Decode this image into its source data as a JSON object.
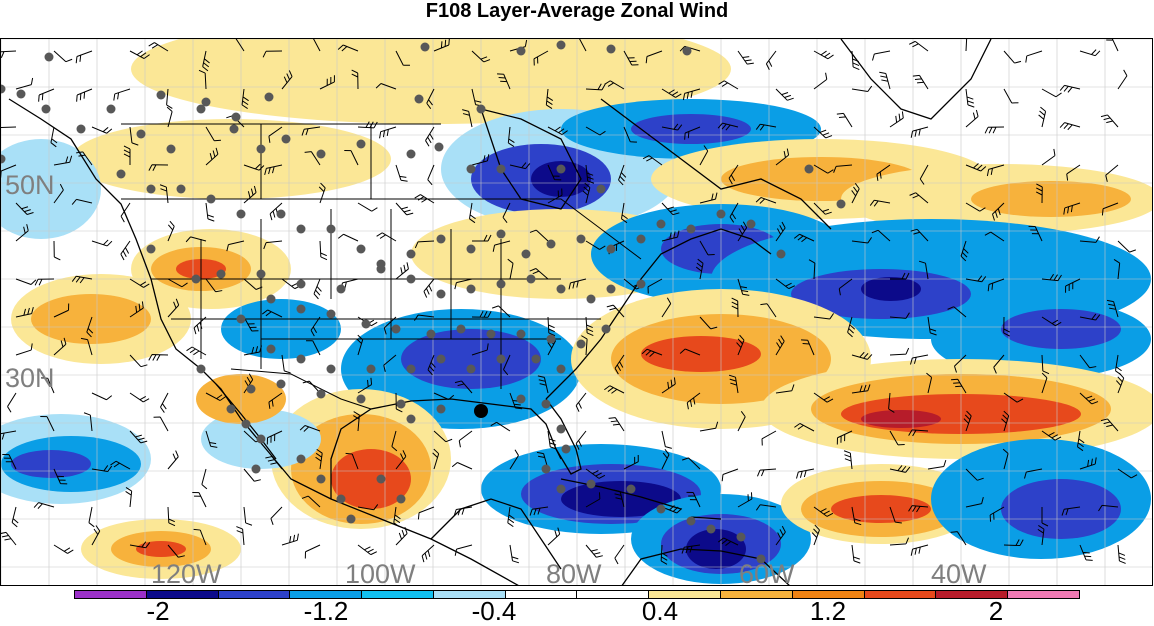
{
  "title": "F108 Layer-Average Zonal Wind",
  "map": {
    "lat_labels": [
      "50N",
      "30N"
    ],
    "lon_labels": [
      "120W",
      "100W",
      "80W",
      "60W",
      "40W"
    ]
  },
  "colorbar": {
    "colors": [
      "#9b30c8",
      "#0c0a8a",
      "#2d41c9",
      "#0a9ee6",
      "#12c0f0",
      "#a9e0f7",
      "#ffffff",
      "#ffffff",
      "#fbe796",
      "#f7b23c",
      "#f08313",
      "#e7491c",
      "#b71c2a",
      "#f07ab4"
    ],
    "tick_labels": [
      "-2",
      "-1.2",
      "-0.4",
      "0.4",
      "1.2",
      "2"
    ]
  },
  "field_colors": {
    "dark_blue": "#0c0a8a",
    "blue": "#2d41c9",
    "light_blue": "#0a9ee6",
    "pale_blue": "#a9e0f7",
    "pale_yellow": "#fbe796",
    "orange": "#f7b23c",
    "red_orange": "#e7491c",
    "dark_red": "#b71c2a",
    "station_dot": "#585858",
    "coast": "#000000",
    "grid": "#c8c8c8"
  }
}
